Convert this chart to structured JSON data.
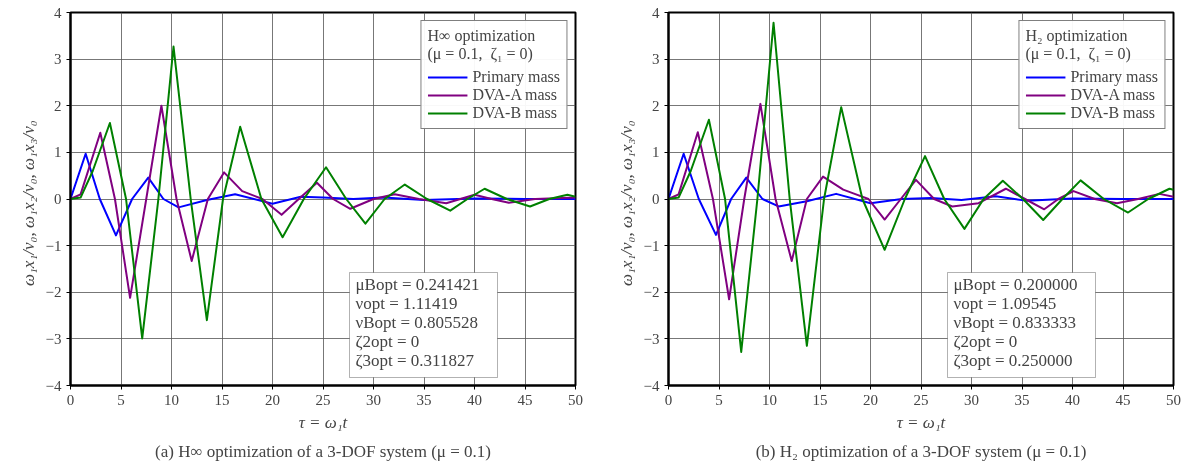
{
  "chart_data": [
    {
      "type": "line",
      "title": "(a) H∞ optimization of a 3-DOF system (μ = 0.1)",
      "xlabel": "τ = ω₁t",
      "ylabel": "ω₁x₁/v₀,  ω₁x₂/v₀,  ω₁x₃/v₀",
      "legend_title": "H∞ optimization\n(μ = 0.1,  ζ₁ = 0)",
      "annotations": [
        "μBopt = 0.241421",
        "νopt = 1.11419",
        "νBopt = 0.805528",
        "ζ2opt = 0",
        "ζ3opt = 0.311827"
      ],
      "xlim": [
        0,
        50
      ],
      "ylim": [
        -4,
        4
      ],
      "xticks": [
        0,
        5,
        10,
        15,
        20,
        25,
        30,
        35,
        40,
        45,
        50
      ],
      "yticks": [
        -4,
        -3,
        -2,
        -1,
        0,
        1,
        2,
        3,
        4
      ],
      "grid": true,
      "legend": "top right",
      "series": [
        {
          "name": "Primary mass",
          "color": "#0000ff",
          "x": [
            0,
            1.5,
            2.9,
            4.5,
            6.1,
            7.7,
            9.2,
            10.7,
            13.5,
            16.3,
            20,
            22.8,
            25,
            28,
            31,
            35,
            40,
            45,
            50
          ],
          "values": [
            0,
            0.97,
            0,
            -0.78,
            0,
            0.46,
            0,
            -0.18,
            -0.02,
            0.1,
            -0.1,
            0.05,
            0.03,
            0,
            0.03,
            -0.02,
            0.01,
            0,
            0
          ]
        },
        {
          "name": "DVA-A mass",
          "color": "#800080",
          "x": [
            0,
            1,
            2.95,
            4.4,
            5.9,
            7.5,
            9,
            10.5,
            12,
            13.6,
            15.2,
            17,
            19,
            20.9,
            22.6,
            24.4,
            26,
            27.7,
            30,
            32.1,
            34.5,
            37.2,
            38.6,
            40,
            41.7,
            43.4,
            46,
            50
          ],
          "values": [
            0,
            0.1,
            1.42,
            0,
            -2.12,
            0,
            2.0,
            0,
            -1.33,
            0,
            0.57,
            0.17,
            0,
            -0.34,
            0,
            0.35,
            0,
            -0.21,
            0,
            0.1,
            0,
            -0.09,
            0,
            0.09,
            0,
            -0.08,
            0,
            0.03
          ]
        },
        {
          "name": "DVA-B mass",
          "color": "#008000",
          "x": [
            0,
            1,
            2.2,
            3.9,
            5.5,
            7.1,
            8.7,
            10.2,
            11.9,
            13.5,
            15.1,
            16.8,
            18.9,
            21,
            23.1,
            25.3,
            27.3,
            29.2,
            31.1,
            33.1,
            35.3,
            37.6,
            39.3,
            41,
            43.2,
            45.5,
            47.4,
            49.2,
            50
          ],
          "values": [
            0,
            0.03,
            0.6,
            1.63,
            0,
            -2.99,
            0,
            3.27,
            0,
            -2.6,
            0,
            1.55,
            0,
            -0.82,
            0,
            0.68,
            0,
            -0.53,
            0,
            0.31,
            0,
            -0.25,
            0,
            0.22,
            0,
            -0.16,
            0,
            0.09,
            0.05
          ]
        }
      ]
    },
    {
      "type": "line",
      "title": "(b) H₂ optimization of a 3-DOF system (μ = 0.1)",
      "xlabel": "τ = ω₁t",
      "ylabel": "ω₁x₁/v₀,  ω₁x₂/v₀,  ω₁x₃/v₀",
      "legend_title": "H₂ optimization\n(μ = 0.1,  ζ₁ = 0)",
      "annotations": [
        "μBopt = 0.200000",
        "νopt = 1.09545",
        "νBopt = 0.833333",
        "ζ2opt = 0",
        "ζ3opt = 0.250000"
      ],
      "xlim": [
        0,
        50
      ],
      "ylim": [
        -4,
        4
      ],
      "xticks": [
        0,
        5,
        10,
        15,
        20,
        25,
        30,
        35,
        40,
        45,
        50
      ],
      "yticks": [
        -4,
        -3,
        -2,
        -1,
        0,
        1,
        2,
        3,
        4
      ],
      "grid": true,
      "legend": "top right",
      "series": [
        {
          "name": "Primary mass",
          "color": "#0000ff",
          "x": [
            0,
            1.5,
            3,
            4.7,
            6.2,
            7.7,
            9.3,
            10.9,
            13.7,
            16.6,
            20,
            23.1,
            26,
            29,
            32.4,
            35.5,
            40,
            45,
            50
          ],
          "values": [
            0,
            0.97,
            0,
            -0.77,
            0,
            0.46,
            0,
            -0.16,
            -0.05,
            0.11,
            -0.09,
            0,
            0.02,
            -0.02,
            0.06,
            -0.04,
            0.01,
            0,
            0
          ]
        },
        {
          "name": "DVA-A mass",
          "color": "#800080",
          "x": [
            0,
            1,
            2.9,
            4.4,
            6.0,
            7.5,
            9.1,
            10.6,
            12.2,
            13.7,
            15.3,
            17.3,
            18.3,
            19.8,
            21.4,
            23,
            24.5,
            26.3,
            28.1,
            30.7,
            33.4,
            35.3,
            37.2,
            38.6,
            40.1,
            42.2,
            44.4,
            46.5,
            48.6,
            50
          ],
          "values": [
            0,
            0.1,
            1.43,
            0,
            -2.15,
            0,
            2.04,
            0,
            -1.33,
            0,
            0.48,
            0.2,
            0.12,
            0,
            -0.44,
            0,
            0.41,
            0,
            -0.16,
            -0.09,
            0.22,
            0,
            -0.22,
            0,
            0.17,
            0,
            -0.09,
            0,
            0.11,
            0.05
          ]
        },
        {
          "name": "DVA-B mass",
          "color": "#008000",
          "x": [
            0,
            1,
            2.2,
            4.0,
            5.6,
            7.2,
            8.8,
            10.4,
            12,
            13.7,
            15.4,
            17.1,
            19.2,
            21.4,
            23.4,
            25.4,
            27.3,
            29.3,
            31.2,
            33.1,
            35.1,
            37.1,
            39,
            40.8,
            43.1,
            45.5,
            47.5,
            49.6,
            50
          ],
          "values": [
            0,
            0.03,
            0.6,
            1.7,
            0,
            -3.28,
            0,
            3.78,
            0,
            -3.15,
            0,
            1.97,
            0,
            -1.09,
            0,
            0.92,
            0,
            -0.64,
            0,
            0.39,
            0,
            -0.45,
            0,
            0.4,
            0,
            -0.29,
            0,
            0.22,
            0.2
          ]
        }
      ]
    }
  ]
}
